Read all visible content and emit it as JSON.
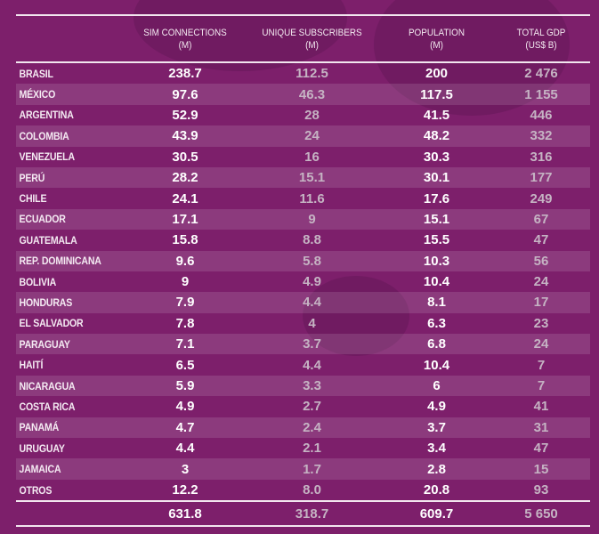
{
  "table": {
    "headers": [
      {
        "line1": "",
        "line2": ""
      },
      {
        "line1": "SIM CONNECTIONS",
        "line2": "(M)"
      },
      {
        "line1": "UNIQUE SUBSCRIBERS",
        "line2": "(M)"
      },
      {
        "line1": "POPULATION",
        "line2": "(M)"
      },
      {
        "line1": "TOTAL GDP",
        "line2": "(US$ B)"
      }
    ],
    "rows": [
      {
        "country": "BRASIL",
        "sim": "238.7",
        "unique": "112.5",
        "population": "200",
        "gdp": "2 476"
      },
      {
        "country": "MÉXICO",
        "sim": "97.6",
        "unique": "46.3",
        "population": "117.5",
        "gdp": "1 155"
      },
      {
        "country": "ARGENTINA",
        "sim": "52.9",
        "unique": "28",
        "population": "41.5",
        "gdp": "446"
      },
      {
        "country": "COLOMBIA",
        "sim": "43.9",
        "unique": "24",
        "population": "48.2",
        "gdp": "332"
      },
      {
        "country": "VENEZUELA",
        "sim": "30.5",
        "unique": "16",
        "population": "30.3",
        "gdp": "316"
      },
      {
        "country": "PERÚ",
        "sim": "28.2",
        "unique": "15.1",
        "population": "30.1",
        "gdp": "177"
      },
      {
        "country": "CHILE",
        "sim": "24.1",
        "unique": "11.6",
        "population": "17.6",
        "gdp": "249"
      },
      {
        "country": "ECUADOR",
        "sim": "17.1",
        "unique": "9",
        "population": "15.1",
        "gdp": "67"
      },
      {
        "country": "GUATEMALA",
        "sim": "15.8",
        "unique": "8.8",
        "population": "15.5",
        "gdp": "47"
      },
      {
        "country": "REP. DOMINICANA",
        "sim": "9.6",
        "unique": "5.8",
        "population": "10.3",
        "gdp": "56"
      },
      {
        "country": "BOLIVIA",
        "sim": "9",
        "unique": "4.9",
        "population": "10.4",
        "gdp": "24"
      },
      {
        "country": "HONDURAS",
        "sim": "7.9",
        "unique": "4.4",
        "population": "8.1",
        "gdp": "17"
      },
      {
        "country": "EL SALVADOR",
        "sim": "7.8",
        "unique": "4",
        "population": "6.3",
        "gdp": "23"
      },
      {
        "country": "PARAGUAY",
        "sim": "7.1",
        "unique": "3.7",
        "population": "6.8",
        "gdp": "24"
      },
      {
        "country": "HAITÍ",
        "sim": "6.5",
        "unique": "4.4",
        "population": "10.4",
        "gdp": "7"
      },
      {
        "country": "NICARAGUA",
        "sim": "5.9",
        "unique": "3.3",
        "population": "6",
        "gdp": "7"
      },
      {
        "country": "COSTA RICA",
        "sim": "4.9",
        "unique": "2.7",
        "population": "4.9",
        "gdp": "41"
      },
      {
        "country": "PANAMÁ",
        "sim": "4.7",
        "unique": "2.4",
        "population": "3.7",
        "gdp": "31"
      },
      {
        "country": "URUGUAY",
        "sim": "4.4",
        "unique": "2.1",
        "population": "3.4",
        "gdp": "47"
      },
      {
        "country": "JAMAICA",
        "sim": "3",
        "unique": "1.7",
        "population": "2.8",
        "gdp": "15"
      },
      {
        "country": "OTROS",
        "sim": "12.2",
        "unique": "8.0",
        "population": "20.8",
        "gdp": "93"
      }
    ],
    "totals": {
      "country": "",
      "sim": "631.8",
      "unique": "318.7",
      "population": "609.7",
      "gdp": "5 650"
    }
  },
  "colors": {
    "background": "#7d1f6b",
    "strong_text": "#ffffff",
    "muted_text": "#c5b3c3",
    "rule": "#f2e6ef"
  }
}
